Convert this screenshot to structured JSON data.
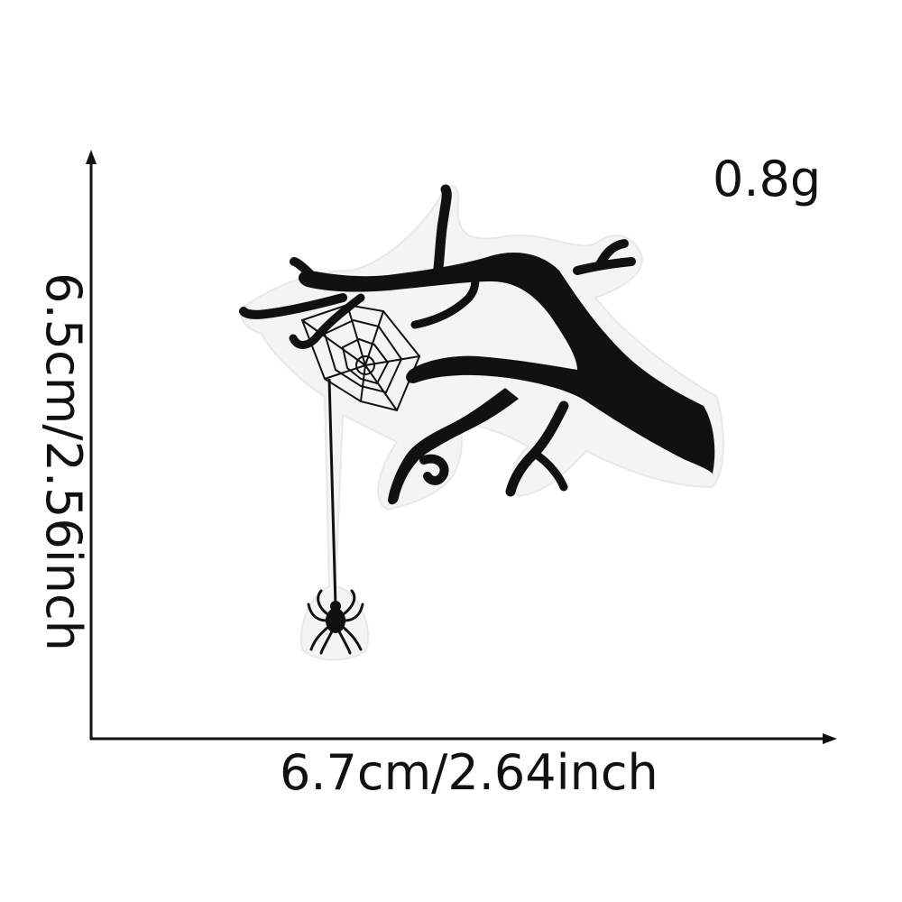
{
  "weight_label": "0.8g",
  "width_label": "6.7cm/2.64inch",
  "height_label": "6.5cm/2.56inch",
  "colors": {
    "text": "#111111",
    "patch": "#111111",
    "border": "#f2f2f2"
  },
  "illustration": "spooky-tree-branch-with-spiderweb-and-spider-patch"
}
